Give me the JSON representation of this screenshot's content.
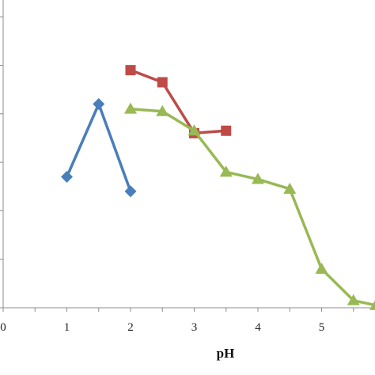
{
  "chart_data": {
    "type": "line",
    "xlabel": "pH",
    "ylabel": "",
    "title": "",
    "xlim": [
      0,
      5.85
    ],
    "ylim": [
      0,
      6.15
    ],
    "x_ticks": [
      "0",
      "1",
      "2",
      "3",
      "4",
      "5"
    ],
    "y_gridlines": [
      1,
      2,
      3,
      4,
      5,
      6
    ],
    "grid": false,
    "legend": "none",
    "series": [
      {
        "color": "#4a7ebb",
        "marker": "diamond",
        "x": [
          1,
          1.5,
          2
        ],
        "y": [
          2.7,
          4.2,
          2.4
        ]
      },
      {
        "color": "#be4b48",
        "marker": "square",
        "x": [
          2,
          2.5,
          3,
          3.5
        ],
        "y": [
          4.9,
          4.65,
          3.6,
          3.65
        ]
      },
      {
        "color": "#98b954",
        "marker": "triangle",
        "x": [
          2,
          2.5,
          3,
          3.5,
          4,
          4.5,
          5,
          5.5,
          5.85
        ],
        "y": [
          4.1,
          4.05,
          3.65,
          2.8,
          2.65,
          2.45,
          0.8,
          0.15,
          0.05
        ]
      }
    ]
  }
}
